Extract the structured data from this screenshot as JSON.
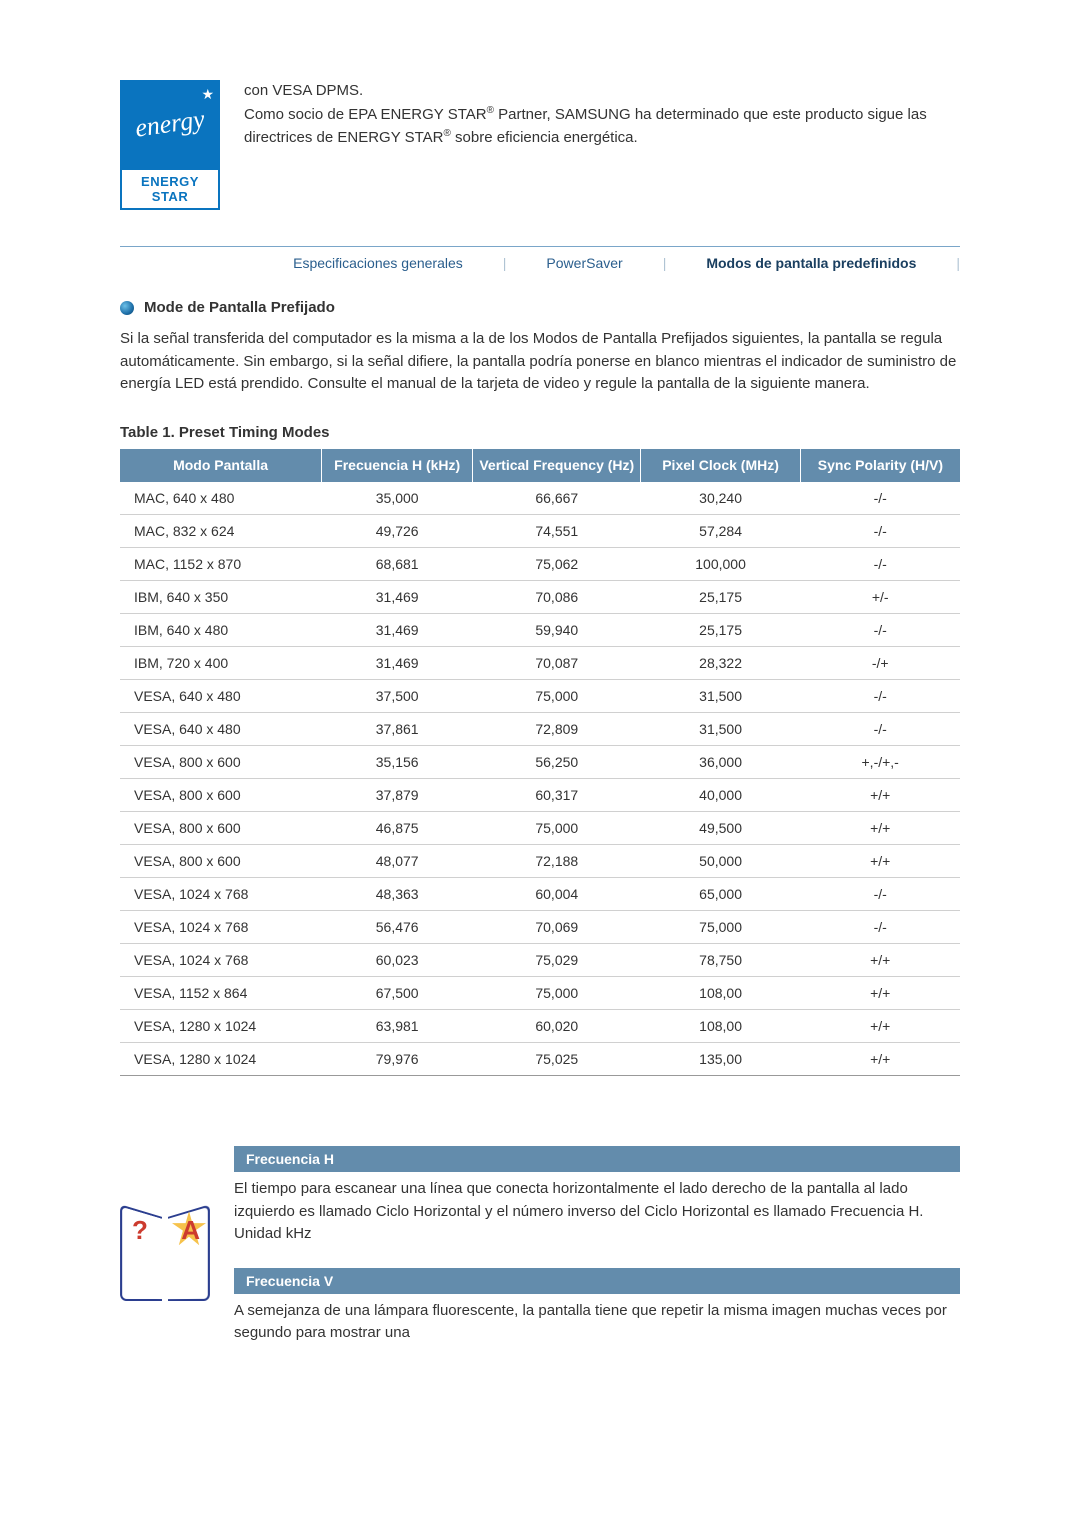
{
  "colors": {
    "header_bg": "#638cac",
    "header_text": "#ffffff",
    "body_text": "#333333",
    "row_border": "#d0d0d0",
    "tab_line": "#7aa6c9",
    "tab_text": "#2a5e8d",
    "logo_bg": "#0a74bf"
  },
  "top": {
    "logo_script": "energy",
    "logo_label": "ENERGY STAR",
    "para_l1": "con VESA DPMS.",
    "para_l2a": "Como socio de EPA ENERGY STAR",
    "para_l2b": " Partner, SAMSUNG ha determinado que este producto sigue las directrices de ENERGY STAR",
    "para_l2c": " sobre eficiencia energética.",
    "reg": "®"
  },
  "tabs": {
    "t1": "Especificaciones generales",
    "t2": "PowerSaver",
    "t3": "Modos de pantalla predefinidos"
  },
  "section": {
    "head": "Mode de Pantalla Prefijado",
    "body": "Si la señal transferida del computador es la misma a la de los Modos de Pantalla Prefijados siguientes, la pantalla se regula automáticamente. Sin embargo, si la señal difiere, la pantalla podría ponerse en blanco mientras el indicador de suministro de energía LED está prendido. Consulte el manual de la tarjeta de video y regule la pantalla de la siguiente manera."
  },
  "table": {
    "title": "Table 1. Preset Timing Modes",
    "columns": [
      "Modo Pantalla",
      "Frecuencia H (kHz)",
      "Vertical Frequency (Hz)",
      "Pixel Clock (MHz)",
      "Sync Polarity (H/V)"
    ],
    "col_widths": [
      "24%",
      "18%",
      "20%",
      "19%",
      "19%"
    ],
    "rows": [
      [
        "MAC, 640 x 480",
        "35,000",
        "66,667",
        "30,240",
        "-/-"
      ],
      [
        "MAC, 832 x 624",
        "49,726",
        "74,551",
        "57,284",
        "-/-"
      ],
      [
        "MAC, 1152 x 870",
        "68,681",
        "75,062",
        "100,000",
        "-/-"
      ],
      [
        "IBM, 640 x 350",
        "31,469",
        "70,086",
        "25,175",
        "+/-"
      ],
      [
        "IBM, 640 x 480",
        "31,469",
        "59,940",
        "25,175",
        "-/-"
      ],
      [
        "IBM, 720 x 400",
        "31,469",
        "70,087",
        "28,322",
        "-/+"
      ],
      [
        "VESA, 640 x 480",
        "37,500",
        "75,000",
        "31,500",
        "-/-"
      ],
      [
        "VESA, 640 x 480",
        "37,861",
        "72,809",
        "31,500",
        "-/-"
      ],
      [
        "VESA, 800 x 600",
        "35,156",
        "56,250",
        "36,000",
        "+,-/+,-"
      ],
      [
        "VESA, 800 x 600",
        "37,879",
        "60,317",
        "40,000",
        "+/+"
      ],
      [
        "VESA, 800 x 600",
        "46,875",
        "75,000",
        "49,500",
        "+/+"
      ],
      [
        "VESA, 800 x 600",
        "48,077",
        "72,188",
        "50,000",
        "+/+"
      ],
      [
        "VESA, 1024 x 768",
        "48,363",
        "60,004",
        "65,000",
        "-/-"
      ],
      [
        "VESA, 1024 x 768",
        "56,476",
        "70,069",
        "75,000",
        "-/-"
      ],
      [
        "VESA, 1024 x 768",
        "60,023",
        "75,029",
        "78,750",
        "+/+"
      ],
      [
        "VESA, 1152 x 864",
        "67,500",
        "75,000",
        "108,00",
        "+/+"
      ],
      [
        "VESA, 1280 x 1024",
        "63,981",
        "60,020",
        "108,00",
        "+/+"
      ],
      [
        "VESA, 1280 x 1024",
        "79,976",
        "75,025",
        "135,00",
        "+/+"
      ]
    ]
  },
  "defs": {
    "h_head": "Frecuencia H",
    "h_body": "El tiempo para escanear una línea que conecta horizontalmente el lado derecho de la pantalla al lado izquierdo es llamado Ciclo Horizontal y el número inverso del Ciclo Horizontal es llamado Frecuencia H. Unidad kHz",
    "v_head": "Frecuencia V",
    "v_body": "A semejanza de una lámpara fluorescente, la pantalla tiene que repetir la misma imagen muchas veces por segundo para mostrar una",
    "q": "?",
    "a": "A"
  }
}
